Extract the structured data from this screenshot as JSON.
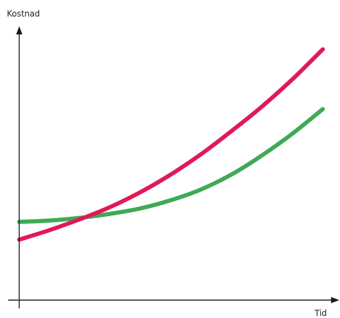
{
  "chart_data": {
    "type": "line",
    "title": "",
    "xlabel": "Tid",
    "ylabel": "Kostnad",
    "xlim": [
      0,
      10
    ],
    "ylim": [
      0,
      10
    ],
    "grid": false,
    "legend": "none",
    "ticks": false,
    "series": [
      {
        "color": "#e0195a",
        "x": [
          0,
          1,
          2,
          3,
          4,
          5,
          6,
          7,
          8,
          9,
          10
        ],
        "y": [
          2.2,
          2.55,
          2.95,
          3.4,
          3.95,
          4.6,
          5.35,
          6.2,
          7.1,
          8.1,
          9.2
        ]
      },
      {
        "color": "#3faa55",
        "x": [
          0,
          1,
          2,
          3,
          4,
          5,
          6,
          7,
          8,
          9,
          10
        ],
        "y": [
          2.85,
          2.9,
          3.0,
          3.15,
          3.35,
          3.65,
          4.05,
          4.6,
          5.3,
          6.1,
          7.0
        ]
      }
    ]
  }
}
